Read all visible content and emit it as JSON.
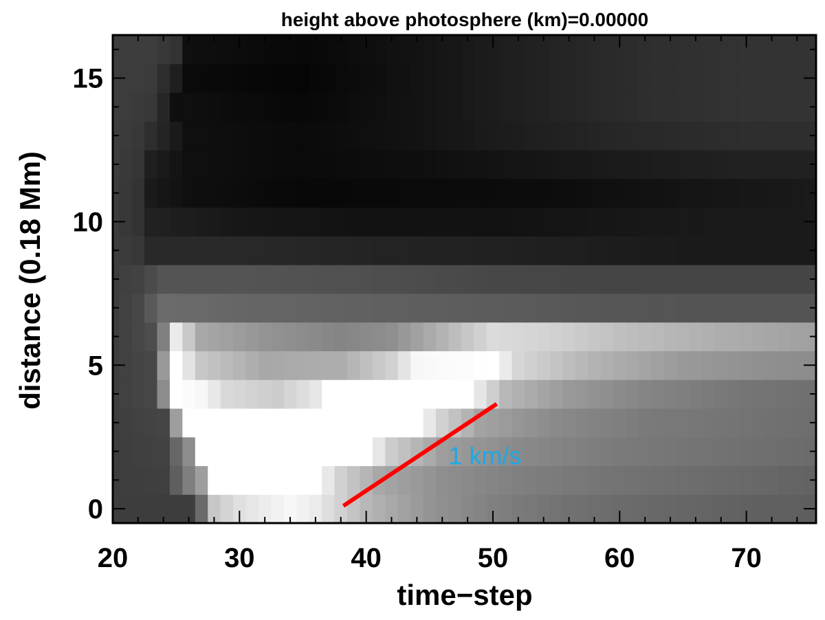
{
  "chart_data": {
    "type": "heatmap",
    "colormap": "grayscale",
    "title": "height above photosphere (km)=0.00000",
    "xlabel": "time−step",
    "ylabel": "distance (0.18 Mm)",
    "xlim": [
      20,
      75.5
    ],
    "ylim": [
      -0.5,
      16.5
    ],
    "x_ticks": [
      20,
      30,
      40,
      50,
      60,
      70
    ],
    "x_tick_labels": [
      "20",
      "30",
      "40",
      "50",
      "60",
      "70"
    ],
    "y_ticks": [
      0,
      5,
      10,
      15
    ],
    "y_tick_labels": [
      "0",
      "5",
      "10",
      "15"
    ],
    "grid": false,
    "rows_y": [
      0,
      1,
      2,
      3,
      4,
      5,
      6,
      7,
      8,
      9,
      10,
      11,
      12,
      13,
      14,
      15,
      16
    ],
    "row_profiles": [
      [
        [
          20,
          0.24
        ],
        [
          26,
          0.24
        ],
        [
          27,
          0.42
        ],
        [
          28,
          0.78
        ],
        [
          30,
          0.88
        ],
        [
          34,
          0.97
        ],
        [
          36,
          0.92
        ],
        [
          40,
          0.72
        ],
        [
          45,
          0.58
        ],
        [
          50,
          0.5
        ],
        [
          55,
          0.45
        ],
        [
          62,
          0.41
        ],
        [
          70,
          0.38
        ],
        [
          75,
          0.37
        ]
      ],
      [
        [
          20,
          0.24
        ],
        [
          24,
          0.25
        ],
        [
          27,
          0.62
        ],
        [
          28,
          1.0
        ],
        [
          36,
          1.0
        ],
        [
          38,
          0.82
        ],
        [
          41,
          0.66
        ],
        [
          46,
          0.56
        ],
        [
          52,
          0.5
        ],
        [
          60,
          0.45
        ],
        [
          70,
          0.41
        ],
        [
          75,
          0.39
        ]
      ],
      [
        [
          20,
          0.24
        ],
        [
          24,
          0.26
        ],
        [
          26,
          0.55
        ],
        [
          27,
          1.0
        ],
        [
          40,
          1.0
        ],
        [
          42,
          0.8
        ],
        [
          46,
          0.62
        ],
        [
          52,
          0.54
        ],
        [
          60,
          0.48
        ],
        [
          70,
          0.44
        ],
        [
          75,
          0.42
        ]
      ],
      [
        [
          20,
          0.24
        ],
        [
          24,
          0.27
        ],
        [
          25,
          0.62
        ],
        [
          26,
          1.0
        ],
        [
          44,
          1.0
        ],
        [
          46,
          0.82
        ],
        [
          49,
          0.64
        ],
        [
          55,
          0.54
        ],
        [
          62,
          0.48
        ],
        [
          70,
          0.45
        ],
        [
          75,
          0.43
        ]
      ],
      [
        [
          20,
          0.24
        ],
        [
          23,
          0.28
        ],
        [
          24,
          0.55
        ],
        [
          25,
          1.0
        ],
        [
          27,
          0.97
        ],
        [
          29,
          0.85
        ],
        [
          33,
          0.8
        ],
        [
          36,
          0.9
        ],
        [
          37,
          1.0
        ],
        [
          48,
          1.0
        ],
        [
          49,
          0.9
        ],
        [
          51,
          0.72
        ],
        [
          56,
          0.6
        ],
        [
          62,
          0.52
        ],
        [
          70,
          0.46
        ],
        [
          75,
          0.44
        ]
      ],
      [
        [
          20,
          0.24
        ],
        [
          23,
          0.28
        ],
        [
          24,
          0.6
        ],
        [
          25,
          1.0
        ],
        [
          27,
          0.78
        ],
        [
          32,
          0.66
        ],
        [
          38,
          0.68
        ],
        [
          42,
          0.82
        ],
        [
          44,
          0.97
        ],
        [
          50,
          1.0
        ],
        [
          52,
          0.84
        ],
        [
          58,
          0.7
        ],
        [
          65,
          0.6
        ],
        [
          72,
          0.56
        ],
        [
          75,
          0.55
        ]
      ],
      [
        [
          20,
          0.24
        ],
        [
          23,
          0.3
        ],
        [
          24,
          0.5
        ],
        [
          25,
          0.92
        ],
        [
          27,
          0.66
        ],
        [
          32,
          0.58
        ],
        [
          38,
          0.52
        ],
        [
          42,
          0.56
        ],
        [
          46,
          0.7
        ],
        [
          50,
          0.86
        ],
        [
          55,
          0.82
        ],
        [
          60,
          0.75
        ],
        [
          68,
          0.68
        ],
        [
          75,
          0.63
        ]
      ],
      [
        [
          20,
          0.24
        ],
        [
          22,
          0.28
        ],
        [
          24,
          0.42
        ],
        [
          30,
          0.4
        ],
        [
          40,
          0.38
        ],
        [
          50,
          0.36
        ],
        [
          58,
          0.34
        ],
        [
          66,
          0.33
        ],
        [
          75,
          0.33
        ]
      ],
      [
        [
          20,
          0.24
        ],
        [
          22,
          0.26
        ],
        [
          24,
          0.33
        ],
        [
          30,
          0.33
        ],
        [
          40,
          0.31
        ],
        [
          50,
          0.28
        ],
        [
          58,
          0.27
        ],
        [
          66,
          0.27
        ],
        [
          75,
          0.27
        ]
      ],
      [
        [
          20,
          0.24
        ],
        [
          22,
          0.22
        ],
        [
          23,
          0.16
        ],
        [
          30,
          0.16
        ],
        [
          40,
          0.14
        ],
        [
          50,
          0.13
        ],
        [
          60,
          0.11
        ],
        [
          68,
          0.1
        ],
        [
          75,
          0.1
        ]
      ],
      [
        [
          20,
          0.24
        ],
        [
          22,
          0.2
        ],
        [
          23,
          0.13
        ],
        [
          30,
          0.09
        ],
        [
          40,
          0.07
        ],
        [
          50,
          0.07
        ],
        [
          60,
          0.09
        ],
        [
          68,
          0.1
        ],
        [
          75,
          0.1
        ]
      ],
      [
        [
          20,
          0.24
        ],
        [
          22,
          0.2
        ],
        [
          23,
          0.1
        ],
        [
          26,
          0.06
        ],
        [
          35,
          0.03
        ],
        [
          45,
          0.04
        ],
        [
          55,
          0.05
        ],
        [
          62,
          0.07
        ],
        [
          70,
          0.09
        ],
        [
          75,
          0.1
        ]
      ],
      [
        [
          20,
          0.24
        ],
        [
          22,
          0.21
        ],
        [
          23,
          0.12
        ],
        [
          26,
          0.06
        ],
        [
          35,
          0.04
        ],
        [
          45,
          0.06
        ],
        [
          55,
          0.09
        ],
        [
          62,
          0.11
        ],
        [
          70,
          0.13
        ],
        [
          75,
          0.13
        ]
      ],
      [
        [
          20,
          0.24
        ],
        [
          22,
          0.22
        ],
        [
          24,
          0.14
        ],
        [
          26,
          0.06
        ],
        [
          35,
          0.04
        ],
        [
          45,
          0.08
        ],
        [
          55,
          0.13
        ],
        [
          62,
          0.16
        ],
        [
          70,
          0.18
        ],
        [
          75,
          0.18
        ]
      ],
      [
        [
          20,
          0.24
        ],
        [
          23,
          0.22
        ],
        [
          24,
          0.15
        ],
        [
          25,
          0.06
        ],
        [
          35,
          0.03
        ],
        [
          45,
          0.08
        ],
        [
          55,
          0.14
        ],
        [
          62,
          0.18
        ],
        [
          70,
          0.2
        ],
        [
          75,
          0.2
        ]
      ],
      [
        [
          20,
          0.24
        ],
        [
          23,
          0.23
        ],
        [
          25,
          0.12
        ],
        [
          26,
          0.04
        ],
        [
          35,
          0.02
        ],
        [
          45,
          0.08
        ],
        [
          55,
          0.14
        ],
        [
          62,
          0.18
        ],
        [
          70,
          0.2
        ],
        [
          75,
          0.2
        ]
      ],
      [
        [
          20,
          0.24
        ],
        [
          23,
          0.24
        ],
        [
          25,
          0.2
        ],
        [
          26,
          0.06
        ],
        [
          35,
          0.03
        ],
        [
          45,
          0.08
        ],
        [
          55,
          0.14
        ],
        [
          62,
          0.18
        ],
        [
          70,
          0.2
        ],
        [
          75,
          0.2
        ]
      ]
    ],
    "annotations": [
      {
        "type": "line",
        "x": [
          38.2,
          50.3
        ],
        "y": [
          0.1,
          3.65
        ],
        "color": "#ff0000"
      },
      {
        "type": "text",
        "text": "1 km/s",
        "x": 46.5,
        "y": 1.55,
        "color": "#1ba9e6"
      }
    ]
  }
}
